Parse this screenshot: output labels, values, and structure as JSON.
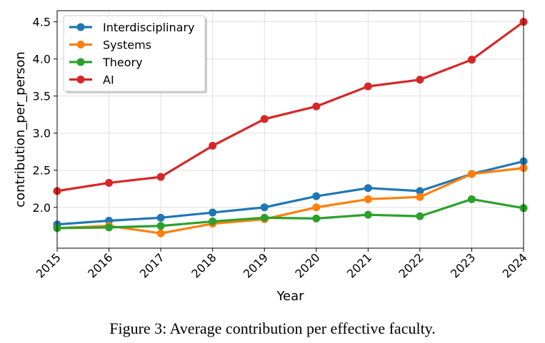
{
  "chart_data": {
    "type": "line",
    "xlabel": "Year",
    "ylabel": "contribution_per_person",
    "x": [
      2015,
      2016,
      2017,
      2018,
      2019,
      2020,
      2021,
      2022,
      2023,
      2024
    ],
    "xlim": [
      2015,
      2024
    ],
    "ylim": [
      1.45,
      4.65
    ],
    "yticks": [
      2.0,
      2.5,
      3.0,
      3.5,
      4.0,
      4.5
    ],
    "ytick_labels": [
      "2.0",
      "2.5",
      "3.0",
      "3.5",
      "4.0",
      "4.5"
    ],
    "xtick_labels": [
      "2015",
      "2016",
      "2017",
      "2018",
      "2019",
      "2020",
      "2021",
      "2022",
      "2023",
      "2024"
    ],
    "grid": true,
    "legend_position": "top-left",
    "series": [
      {
        "name": "Interdisciplinary",
        "color": "#1f77b4",
        "values": [
          1.77,
          1.82,
          1.86,
          1.93,
          2.0,
          2.15,
          2.26,
          2.22,
          2.45,
          2.62
        ]
      },
      {
        "name": "Systems",
        "color": "#ff7f0e",
        "values": [
          1.72,
          1.75,
          1.65,
          1.78,
          1.84,
          2.0,
          2.11,
          2.14,
          2.45,
          2.53
        ]
      },
      {
        "name": "Theory",
        "color": "#2ca02c",
        "values": [
          1.72,
          1.73,
          1.75,
          1.81,
          1.86,
          1.85,
          1.9,
          1.88,
          2.11,
          1.99
        ]
      },
      {
        "name": "AI",
        "color": "#d62728",
        "values": [
          2.22,
          2.33,
          2.41,
          2.83,
          3.19,
          3.36,
          3.63,
          3.72,
          3.99,
          4.5
        ]
      }
    ]
  },
  "caption": "Figure 3: Average contribution per effective faculty."
}
